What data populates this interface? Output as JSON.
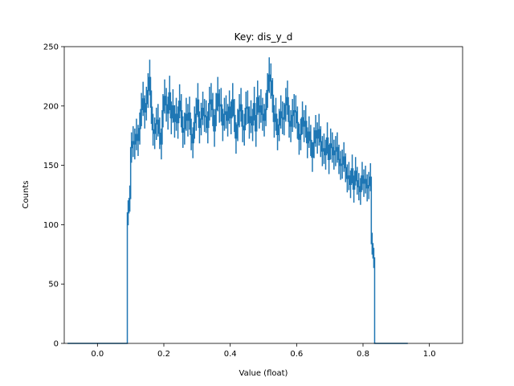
{
  "chart_data": {
    "type": "histogram",
    "title": "Key: dis_y_d",
    "xlabel": "Value (float)",
    "ylabel": "Counts",
    "xlim": [
      -0.1,
      1.1
    ],
    "ylim": [
      0,
      250
    ],
    "xticks": [
      "0.0",
      "0.2",
      "0.4",
      "0.6",
      "0.8",
      "1.0"
    ],
    "yticks": [
      "0",
      "50",
      "100",
      "150",
      "200",
      "250"
    ],
    "bin_width": 0.005,
    "x_start": -0.09,
    "grid": false,
    "legend": "none",
    "color": "#1f77b4",
    "values": [
      0,
      0,
      0,
      0,
      0,
      0,
      0,
      0,
      0,
      0,
      0,
      0,
      0,
      0,
      0,
      0,
      0,
      0,
      0,
      0,
      0,
      0,
      0,
      0,
      0,
      0,
      0,
      0,
      0,
      0,
      0,
      0,
      0,
      0,
      0,
      0,
      110,
      122,
      165,
      170,
      168,
      176,
      171,
      181,
      197,
      206,
      195,
      202,
      213,
      224,
      199,
      180,
      177,
      185,
      188,
      177,
      168,
      196,
      208,
      201,
      194,
      211,
      190,
      200,
      187,
      193,
      186,
      204,
      196,
      178,
      181,
      193,
      188,
      194,
      176,
      169,
      186,
      193,
      205,
      182,
      189,
      198,
      192,
      191,
      182,
      202,
      205,
      197,
      179,
      197,
      210,
      200,
      201,
      184,
      193,
      195,
      188,
      199,
      190,
      205,
      192,
      173,
      184,
      196,
      201,
      183,
      180,
      198,
      199,
      186,
      191,
      184,
      202,
      179,
      207,
      195,
      200,
      193,
      188,
      197,
      213,
      226,
      221,
      209,
      187,
      193,
      176,
      184,
      195,
      190,
      189,
      201,
      207,
      187,
      183,
      192,
      196,
      195,
      186,
      172,
      176,
      190,
      183,
      187,
      169,
      178,
      171,
      157,
      169,
      179,
      173,
      180,
      170,
      162,
      164,
      159,
      173,
      155,
      168,
      165,
      159,
      162,
      165,
      155,
      150,
      151,
      157,
      148,
      139,
      141,
      134,
      147,
      130,
      145,
      137,
      132,
      128,
      141,
      135,
      138,
      131,
      133,
      140,
      84,
      72,
      0,
      0,
      0,
      0,
      0,
      0,
      0,
      0,
      0,
      0,
      0,
      0,
      0,
      0,
      0,
      0,
      0,
      0,
      0,
      0
    ],
    "errors": [
      0,
      0,
      0,
      0,
      0,
      0,
      0,
      0,
      0,
      0,
      0,
      0,
      0,
      0,
      0,
      0,
      0,
      0,
      0,
      0,
      0,
      0,
      0,
      0,
      0,
      0,
      0,
      0,
      0,
      0,
      0,
      0,
      0,
      0,
      0,
      0,
      10.5,
      11,
      12.8,
      13,
      13,
      13.3,
      13.1,
      13.5,
      14,
      14.4,
      14,
      14.2,
      14.6,
      15,
      14.1,
      13.4,
      13.3,
      13.6,
      13.7,
      13.3,
      13,
      14,
      14.4,
      14.2,
      13.9,
      14.5,
      13.8,
      14.1,
      13.7,
      13.9,
      13.6,
      14.3,
      14,
      13.3,
      13.5,
      13.9,
      13.7,
      13.9,
      13.3,
      13,
      13.6,
      13.9,
      14.3,
      13.5,
      13.7,
      14.1,
      13.9,
      13.8,
      13.5,
      14.2,
      14.3,
      14,
      13.4,
      14,
      14.5,
      14.1,
      14.2,
      13.6,
      13.9,
      14,
      13.7,
      14.1,
      13.8,
      14.3,
      13.9,
      13.2,
      13.6,
      14,
      14.2,
      13.5,
      13.4,
      14.1,
      14.1,
      13.6,
      13.8,
      13.6,
      14.2,
      13.4,
      14.4,
      14,
      14.1,
      13.9,
      13.7,
      14,
      14.6,
      15,
      14.9,
      14.5,
      13.7,
      13.9,
      13.3,
      13.6,
      14,
      13.8,
      13.7,
      14.2,
      14.4,
      13.7,
      13.5,
      13.9,
      14,
      14,
      13.6,
      13.1,
      13.3,
      13.8,
      13.5,
      13.7,
      13,
      13.3,
      13.1,
      12.5,
      13,
      13.4,
      13.2,
      13.4,
      13,
      12.7,
      12.8,
      12.6,
      13.2,
      12.4,
      13,
      12.8,
      12.6,
      12.7,
      12.8,
      12.4,
      12.2,
      12.3,
      12.5,
      12.2,
      11.8,
      11.9,
      11.6,
      12.1,
      11.4,
      12,
      11.7,
      11.5,
      11.3,
      11.9,
      11.6,
      11.7,
      11.4,
      11.5,
      11.8,
      9.2,
      8.5,
      0,
      0,
      0,
      0,
      0,
      0,
      0,
      0,
      0,
      0,
      0,
      0,
      0,
      0,
      0,
      0,
      0,
      0,
      0,
      0
    ]
  }
}
